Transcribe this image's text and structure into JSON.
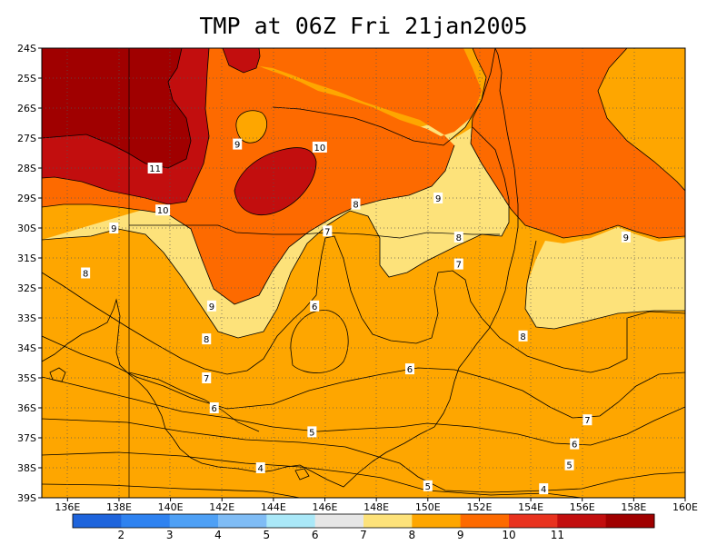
{
  "title": "TMP at 06Z Fri 21jan2005",
  "lat_labels": [
    "24S",
    "25S",
    "26S",
    "27S",
    "28S",
    "29S",
    "30S",
    "31S",
    "32S",
    "33S",
    "34S",
    "35S",
    "36S",
    "37S",
    "38S",
    "39S"
  ],
  "lon_labels": [
    "136E",
    "138E",
    "140E",
    "142E",
    "144E",
    "146E",
    "148E",
    "150E",
    "152E",
    "154E",
    "156E",
    "158E",
    "160E"
  ],
  "colorbar": {
    "labels": [
      "2",
      "3",
      "4",
      "5",
      "6",
      "7",
      "8",
      "9",
      "10",
      "11"
    ],
    "colors": [
      "#1e64dc",
      "#2e82f0",
      "#4ea0f5",
      "#7fbcf5",
      "#aae8f8",
      "#e6e6e6",
      "#fde27a",
      "#fea600",
      "#fd6a00",
      "#e8321e",
      "#c20e0e",
      "#a00000"
    ]
  },
  "contour_labels": [
    {
      "text": "9",
      "lat": -27.2,
      "lon": 142.6
    },
    {
      "text": "10",
      "lat": -27.3,
      "lon": 145.8
    },
    {
      "text": "11",
      "lat": -28.0,
      "lon": 139.4
    },
    {
      "text": "10",
      "lat": -29.4,
      "lon": 139.7
    },
    {
      "text": "9",
      "lat": -29.0,
      "lon": 150.4
    },
    {
      "text": "8",
      "lat": -29.2,
      "lon": 147.2
    },
    {
      "text": "9",
      "lat": -30.0,
      "lon": 137.8
    },
    {
      "text": "7",
      "lat": -30.1,
      "lon": 146.1
    },
    {
      "text": "8",
      "lat": -30.3,
      "lon": 151.2
    },
    {
      "text": "9",
      "lat": -30.3,
      "lon": 157.7
    },
    {
      "text": "7",
      "lat": -31.2,
      "lon": 151.2
    },
    {
      "text": "8",
      "lat": -31.5,
      "lon": 136.7
    },
    {
      "text": "9",
      "lat": -32.6,
      "lon": 141.6
    },
    {
      "text": "6",
      "lat": -32.6,
      "lon": 145.6
    },
    {
      "text": "8",
      "lat": -33.6,
      "lon": 153.7
    },
    {
      "text": "8",
      "lat": -33.7,
      "lon": 141.4
    },
    {
      "text": "6",
      "lat": -34.7,
      "lon": 149.3
    },
    {
      "text": "7",
      "lat": -35.0,
      "lon": 141.4
    },
    {
      "text": "6",
      "lat": -36.0,
      "lon": 141.7
    },
    {
      "text": "7",
      "lat": -36.4,
      "lon": 156.2
    },
    {
      "text": "5",
      "lat": -36.8,
      "lon": 145.5
    },
    {
      "text": "6",
      "lat": -37.2,
      "lon": 155.7
    },
    {
      "text": "5",
      "lat": -37.9,
      "lon": 155.5
    },
    {
      "text": "4",
      "lat": -38.0,
      "lon": 143.5
    },
    {
      "text": "5",
      "lat": -38.6,
      "lon": 150.0
    },
    {
      "text": "4",
      "lat": -38.7,
      "lon": 154.5
    }
  ]
}
